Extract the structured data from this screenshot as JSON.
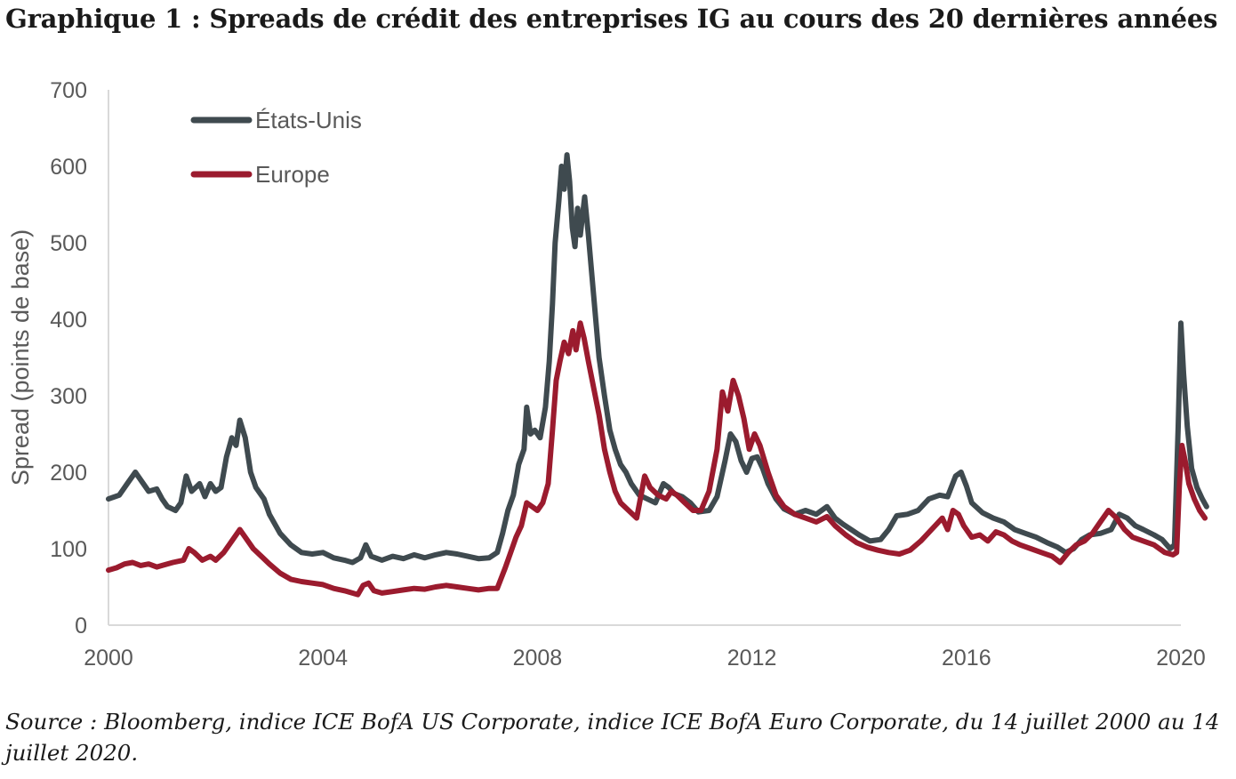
{
  "title": "Graphique 1 :  Spreads de crédit des entreprises IG au cours des 20 dernières années",
  "source": "Source : Bloomberg, indice ICE BofA US Corporate, indice ICE BofA Euro Corporate, du 14 juillet 2000 au 14 juillet 2020.",
  "chart_data": {
    "type": "line",
    "ylabel": "Spread (points de base)",
    "xlabel": "",
    "ylim": [
      0,
      700
    ],
    "xlim": [
      2000,
      2020
    ],
    "yticks": [
      0,
      100,
      200,
      300,
      400,
      500,
      600,
      700
    ],
    "xticks": [
      2000,
      2004,
      2008,
      2012,
      2016,
      2020
    ],
    "grid": false,
    "legend_position": "top-left",
    "series": [
      {
        "name": "États-Unis",
        "color": "#3f4a4f",
        "points": [
          [
            2000.0,
            165
          ],
          [
            2000.2,
            170
          ],
          [
            2000.35,
            185
          ],
          [
            2000.5,
            200
          ],
          [
            2000.6,
            190
          ],
          [
            2000.75,
            175
          ],
          [
            2000.9,
            178
          ],
          [
            2001.0,
            165
          ],
          [
            2001.1,
            155
          ],
          [
            2001.25,
            150
          ],
          [
            2001.35,
            160
          ],
          [
            2001.45,
            195
          ],
          [
            2001.55,
            175
          ],
          [
            2001.7,
            185
          ],
          [
            2001.8,
            168
          ],
          [
            2001.9,
            185
          ],
          [
            2002.0,
            175
          ],
          [
            2002.1,
            180
          ],
          [
            2002.2,
            220
          ],
          [
            2002.3,
            245
          ],
          [
            2002.38,
            235
          ],
          [
            2002.45,
            268
          ],
          [
            2002.55,
            245
          ],
          [
            2002.65,
            200
          ],
          [
            2002.75,
            180
          ],
          [
            2002.9,
            165
          ],
          [
            2003.0,
            145
          ],
          [
            2003.2,
            120
          ],
          [
            2003.4,
            105
          ],
          [
            2003.6,
            95
          ],
          [
            2003.8,
            93
          ],
          [
            2004.0,
            95
          ],
          [
            2004.2,
            88
          ],
          [
            2004.4,
            85
          ],
          [
            2004.55,
            82
          ],
          [
            2004.7,
            88
          ],
          [
            2004.8,
            105
          ],
          [
            2004.9,
            90
          ],
          [
            2005.1,
            85
          ],
          [
            2005.3,
            90
          ],
          [
            2005.5,
            87
          ],
          [
            2005.7,
            92
          ],
          [
            2005.9,
            88
          ],
          [
            2006.1,
            92
          ],
          [
            2006.3,
            95
          ],
          [
            2006.5,
            93
          ],
          [
            2006.7,
            90
          ],
          [
            2006.9,
            87
          ],
          [
            2007.1,
            88
          ],
          [
            2007.25,
            95
          ],
          [
            2007.35,
            120
          ],
          [
            2007.45,
            150
          ],
          [
            2007.55,
            170
          ],
          [
            2007.65,
            210
          ],
          [
            2007.75,
            230
          ],
          [
            2007.8,
            285
          ],
          [
            2007.87,
            250
          ],
          [
            2007.95,
            255
          ],
          [
            2008.05,
            245
          ],
          [
            2008.15,
            285
          ],
          [
            2008.22,
            345
          ],
          [
            2008.28,
            420
          ],
          [
            2008.33,
            500
          ],
          [
            2008.4,
            555
          ],
          [
            2008.45,
            600
          ],
          [
            2008.5,
            570
          ],
          [
            2008.55,
            615
          ],
          [
            2008.6,
            580
          ],
          [
            2008.65,
            520
          ],
          [
            2008.7,
            495
          ],
          [
            2008.75,
            545
          ],
          [
            2008.8,
            510
          ],
          [
            2008.88,
            560
          ],
          [
            2008.95,
            510
          ],
          [
            2009.05,
            430
          ],
          [
            2009.15,
            350
          ],
          [
            2009.25,
            300
          ],
          [
            2009.35,
            255
          ],
          [
            2009.45,
            230
          ],
          [
            2009.55,
            210
          ],
          [
            2009.65,
            200
          ],
          [
            2009.75,
            185
          ],
          [
            2009.9,
            170
          ],
          [
            2010.05,
            165
          ],
          [
            2010.2,
            160
          ],
          [
            2010.35,
            185
          ],
          [
            2010.45,
            180
          ],
          [
            2010.55,
            172
          ],
          [
            2010.7,
            168
          ],
          [
            2010.85,
            160
          ],
          [
            2011.0,
            148
          ],
          [
            2011.2,
            150
          ],
          [
            2011.35,
            168
          ],
          [
            2011.5,
            215
          ],
          [
            2011.6,
            250
          ],
          [
            2011.7,
            240
          ],
          [
            2011.8,
            215
          ],
          [
            2011.9,
            200
          ],
          [
            2012.0,
            218
          ],
          [
            2012.1,
            220
          ],
          [
            2012.2,
            205
          ],
          [
            2012.3,
            185
          ],
          [
            2012.45,
            165
          ],
          [
            2012.6,
            152
          ],
          [
            2012.8,
            145
          ],
          [
            2013.0,
            150
          ],
          [
            2013.2,
            145
          ],
          [
            2013.4,
            155
          ],
          [
            2013.55,
            140
          ],
          [
            2013.7,
            132
          ],
          [
            2013.85,
            125
          ],
          [
            2014.0,
            118
          ],
          [
            2014.2,
            110
          ],
          [
            2014.4,
            112
          ],
          [
            2014.55,
            125
          ],
          [
            2014.7,
            143
          ],
          [
            2014.9,
            145
          ],
          [
            2015.1,
            150
          ],
          [
            2015.3,
            165
          ],
          [
            2015.5,
            170
          ],
          [
            2015.65,
            168
          ],
          [
            2015.8,
            195
          ],
          [
            2015.9,
            200
          ],
          [
            2016.0,
            182
          ],
          [
            2016.1,
            160
          ],
          [
            2016.3,
            147
          ],
          [
            2016.5,
            140
          ],
          [
            2016.7,
            135
          ],
          [
            2016.9,
            125
          ],
          [
            2017.1,
            120
          ],
          [
            2017.3,
            115
          ],
          [
            2017.5,
            108
          ],
          [
            2017.7,
            102
          ],
          [
            2017.85,
            95
          ],
          [
            2018.0,
            100
          ],
          [
            2018.15,
            112
          ],
          [
            2018.3,
            118
          ],
          [
            2018.5,
            120
          ],
          [
            2018.7,
            125
          ],
          [
            2018.85,
            145
          ],
          [
            2019.0,
            140
          ],
          [
            2019.15,
            130
          ],
          [
            2019.3,
            125
          ],
          [
            2019.5,
            118
          ],
          [
            2019.65,
            112
          ],
          [
            2019.8,
            100
          ],
          [
            2019.88,
            105
          ],
          [
            2019.95,
            260
          ],
          [
            2020.0,
            395
          ],
          [
            2020.05,
            330
          ],
          [
            2020.12,
            260
          ],
          [
            2020.2,
            205
          ],
          [
            2020.3,
            180
          ],
          [
            2020.4,
            165
          ],
          [
            2020.48,
            155
          ]
        ]
      },
      {
        "name": "Europe",
        "color": "#9b1b2e",
        "points": [
          [
            2000.0,
            72
          ],
          [
            2000.15,
            75
          ],
          [
            2000.3,
            80
          ],
          [
            2000.45,
            82
          ],
          [
            2000.6,
            78
          ],
          [
            2000.75,
            80
          ],
          [
            2000.9,
            76
          ],
          [
            2001.0,
            78
          ],
          [
            2001.2,
            82
          ],
          [
            2001.4,
            85
          ],
          [
            2001.5,
            100
          ],
          [
            2001.6,
            95
          ],
          [
            2001.75,
            85
          ],
          [
            2001.9,
            90
          ],
          [
            2002.0,
            85
          ],
          [
            2002.15,
            95
          ],
          [
            2002.3,
            110
          ],
          [
            2002.45,
            125
          ],
          [
            2002.55,
            115
          ],
          [
            2002.7,
            100
          ],
          [
            2002.85,
            90
          ],
          [
            2003.0,
            80
          ],
          [
            2003.2,
            68
          ],
          [
            2003.4,
            60
          ],
          [
            2003.6,
            57
          ],
          [
            2003.8,
            55
          ],
          [
            2004.0,
            53
          ],
          [
            2004.2,
            48
          ],
          [
            2004.4,
            45
          ],
          [
            2004.55,
            42
          ],
          [
            2004.65,
            40
          ],
          [
            2004.75,
            52
          ],
          [
            2004.85,
            55
          ],
          [
            2004.95,
            45
          ],
          [
            2005.1,
            42
          ],
          [
            2005.3,
            44
          ],
          [
            2005.5,
            46
          ],
          [
            2005.7,
            48
          ],
          [
            2005.9,
            47
          ],
          [
            2006.1,
            50
          ],
          [
            2006.3,
            52
          ],
          [
            2006.5,
            50
          ],
          [
            2006.7,
            48
          ],
          [
            2006.9,
            46
          ],
          [
            2007.1,
            48
          ],
          [
            2007.25,
            48
          ],
          [
            2007.4,
            75
          ],
          [
            2007.5,
            95
          ],
          [
            2007.6,
            115
          ],
          [
            2007.7,
            130
          ],
          [
            2007.8,
            160
          ],
          [
            2007.9,
            155
          ],
          [
            2008.0,
            150
          ],
          [
            2008.1,
            160
          ],
          [
            2008.2,
            185
          ],
          [
            2008.28,
            255
          ],
          [
            2008.35,
            320
          ],
          [
            2008.42,
            345
          ],
          [
            2008.5,
            370
          ],
          [
            2008.58,
            355
          ],
          [
            2008.66,
            385
          ],
          [
            2008.72,
            360
          ],
          [
            2008.8,
            395
          ],
          [
            2008.87,
            375
          ],
          [
            2008.95,
            345
          ],
          [
            2009.05,
            310
          ],
          [
            2009.15,
            275
          ],
          [
            2009.25,
            230
          ],
          [
            2009.35,
            200
          ],
          [
            2009.45,
            175
          ],
          [
            2009.55,
            160
          ],
          [
            2009.7,
            150
          ],
          [
            2009.85,
            140
          ],
          [
            2010.0,
            195
          ],
          [
            2010.1,
            180
          ],
          [
            2010.25,
            170
          ],
          [
            2010.4,
            165
          ],
          [
            2010.5,
            175
          ],
          [
            2010.6,
            170
          ],
          [
            2010.75,
            160
          ],
          [
            2010.9,
            150
          ],
          [
            2011.05,
            150
          ],
          [
            2011.2,
            175
          ],
          [
            2011.35,
            230
          ],
          [
            2011.45,
            305
          ],
          [
            2011.55,
            280
          ],
          [
            2011.65,
            320
          ],
          [
            2011.75,
            300
          ],
          [
            2011.85,
            270
          ],
          [
            2011.95,
            230
          ],
          [
            2012.05,
            250
          ],
          [
            2012.15,
            235
          ],
          [
            2012.3,
            200
          ],
          [
            2012.45,
            170
          ],
          [
            2012.6,
            155
          ],
          [
            2012.8,
            145
          ],
          [
            2013.0,
            140
          ],
          [
            2013.2,
            135
          ],
          [
            2013.4,
            142
          ],
          [
            2013.55,
            130
          ],
          [
            2013.75,
            118
          ],
          [
            2013.95,
            108
          ],
          [
            2014.15,
            102
          ],
          [
            2014.35,
            98
          ],
          [
            2014.55,
            95
          ],
          [
            2014.75,
            93
          ],
          [
            2014.95,
            98
          ],
          [
            2015.15,
            110
          ],
          [
            2015.35,
            125
          ],
          [
            2015.55,
            140
          ],
          [
            2015.65,
            125
          ],
          [
            2015.75,
            150
          ],
          [
            2015.85,
            145
          ],
          [
            2015.95,
            130
          ],
          [
            2016.1,
            115
          ],
          [
            2016.25,
            118
          ],
          [
            2016.4,
            110
          ],
          [
            2016.55,
            122
          ],
          [
            2016.7,
            118
          ],
          [
            2016.85,
            110
          ],
          [
            2017.0,
            105
          ],
          [
            2017.2,
            100
          ],
          [
            2017.4,
            95
          ],
          [
            2017.6,
            90
          ],
          [
            2017.75,
            82
          ],
          [
            2017.9,
            95
          ],
          [
            2018.05,
            105
          ],
          [
            2018.2,
            110
          ],
          [
            2018.35,
            120
          ],
          [
            2018.5,
            135
          ],
          [
            2018.65,
            150
          ],
          [
            2018.8,
            140
          ],
          [
            2018.95,
            125
          ],
          [
            2019.1,
            115
          ],
          [
            2019.3,
            110
          ],
          [
            2019.5,
            105
          ],
          [
            2019.7,
            95
          ],
          [
            2019.85,
            92
          ],
          [
            2019.92,
            95
          ],
          [
            2019.97,
            180
          ],
          [
            2020.02,
            235
          ],
          [
            2020.08,
            215
          ],
          [
            2020.15,
            185
          ],
          [
            2020.25,
            165
          ],
          [
            2020.35,
            150
          ],
          [
            2020.45,
            140
          ]
        ]
      }
    ]
  }
}
